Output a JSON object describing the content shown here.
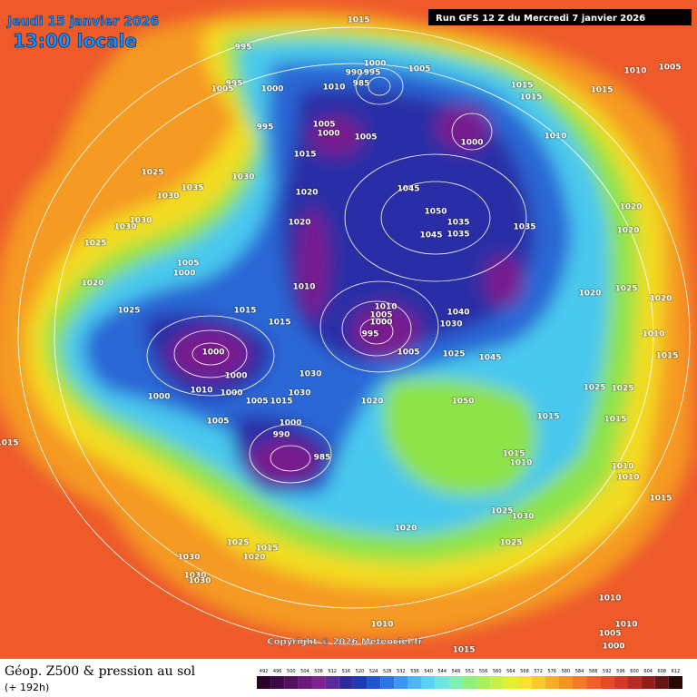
{
  "header": {
    "date": "Jeudi 15 janvier 2026",
    "time": "13:00 locale",
    "run": "Run GFS 12 Z du Mercredi 7 janvier 2026"
  },
  "map": {
    "copyright": "Copyright © 2026 Meteociel.fr",
    "pressure_labels": [
      1015,
      995,
      995,
      1005,
      1000,
      1010,
      990,
      1000,
      995,
      985,
      1005,
      1010,
      1005,
      1015,
      1015,
      1015,
      1000,
      1010,
      1005,
      1000,
      1005,
      995,
      1015,
      1025,
      1030,
      1035,
      1030,
      1020,
      1045,
      1050,
      1035,
      1045,
      1035,
      1035,
      1020,
      1020,
      1030,
      1030,
      1025,
      1020,
      1005,
      1000,
      1020,
      1025,
      1010,
      1015,
      1015,
      1010,
      1005,
      1000,
      995,
      1005,
      1040,
      1030,
      1025,
      1045,
      1020,
      1025,
      1020,
      1010,
      1015,
      1000,
      1000,
      1010,
      1000,
      1000,
      1030,
      1030,
      1005,
      1015,
      1020,
      1050,
      1025,
      1025,
      1015,
      1015,
      1000,
      990,
      985,
      1005,
      1015,
      1015,
      1010,
      1010,
      1010,
      1015,
      1025,
      1030,
      1020,
      1025,
      1025,
      1015,
      1020,
      1030,
      1030,
      1030,
      1010,
      1010,
      1005,
      1000,
      1010,
      1015
    ]
  },
  "footer": {
    "title": "Géop. Z500 & pression au sol",
    "lead": "(+ 192h)"
  },
  "legend": {
    "levels": [
      492,
      496,
      500,
      504,
      508,
      512,
      516,
      520,
      524,
      528,
      532,
      536,
      540,
      544,
      548,
      552,
      556,
      560,
      564,
      568,
      572,
      576,
      580,
      584,
      588,
      592,
      596,
      600,
      604,
      608,
      612
    ],
    "colors": [
      "#2a002a",
      "#3c0a46",
      "#52105e",
      "#6a1a7a",
      "#7e2492",
      "#5a2a9c",
      "#2e2a9e",
      "#1e3ab4",
      "#1e56d0",
      "#2a74e4",
      "#3a96f0",
      "#4ab6f4",
      "#5ad2f4",
      "#6ee6e0",
      "#7ef0b4",
      "#8ef07a",
      "#a8f05a",
      "#c8f046",
      "#e6ee32",
      "#f8e22a",
      "#fac828",
      "#f8ae26",
      "#f69424",
      "#f47a24",
      "#f06026",
      "#e84a28",
      "#d63828",
      "#b82a24",
      "#941e1e",
      "#661414",
      "#2a0808"
    ]
  }
}
